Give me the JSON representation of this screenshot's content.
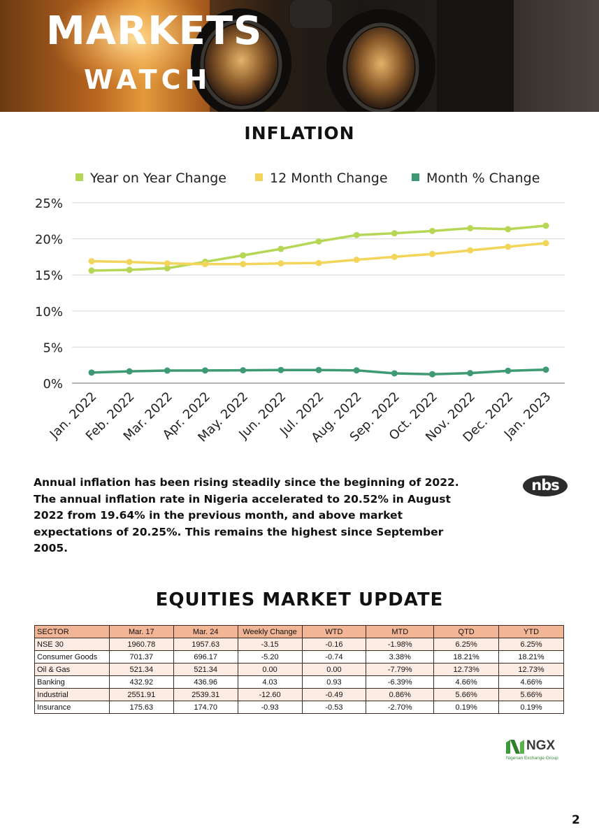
{
  "banner": {
    "title": "MARKETS",
    "subtitle": "WATCH"
  },
  "inflation": {
    "title": "INFLATION",
    "description": "Annual inflation has been rising steadily since the beginning of 2022. The annual inflation rate in Nigeria accelerated to 20.52% in August 2022 from 19.64% in the previous month, and above market expectations of 20.25%. This remains the highest since September 2005.",
    "source_logo": "nbs"
  },
  "chart_data": {
    "type": "line",
    "title": "",
    "xlabel": "",
    "ylabel": "",
    "categories": [
      "Jan. 2022",
      "Feb. 2022",
      "Mar. 2022",
      "Apr. 2022",
      "May. 2022",
      "Jun. 2022",
      "Jul. 2022",
      "Aug. 2022",
      "Sep. 2022",
      "Oct. 2022",
      "Nov. 2022",
      "Dec. 2022",
      "Jan. 2023"
    ],
    "y_ticks": [
      "0%",
      "5%",
      "10%",
      "15%",
      "20%",
      "25%"
    ],
    "ylim": [
      0,
      25
    ],
    "grid": true,
    "legend_position": "top",
    "series": [
      {
        "name": "Year on Year Change",
        "color": "#b5d755",
        "values": [
          15.6,
          15.7,
          15.92,
          16.82,
          17.71,
          18.6,
          19.64,
          20.52,
          20.77,
          21.09,
          21.47,
          21.34,
          21.82
        ]
      },
      {
        "name": "12 Month Change",
        "color": "#f2d55a",
        "values": [
          16.9,
          16.8,
          16.6,
          16.5,
          16.5,
          16.6,
          16.65,
          17.1,
          17.5,
          17.9,
          18.4,
          18.9,
          19.4
        ]
      },
      {
        "name": "Month % Change",
        "color": "#3d9a73",
        "values": [
          1.47,
          1.63,
          1.74,
          1.76,
          1.78,
          1.82,
          1.82,
          1.77,
          1.36,
          1.24,
          1.39,
          1.71,
          1.87
        ]
      }
    ]
  },
  "equities": {
    "title": "EQUITIES MARKET UPDATE",
    "columns": [
      "SECTOR",
      "Mar. 17",
      "Mar. 24",
      "Weekly Change",
      "WTD",
      "MTD",
      "QTD",
      "YTD"
    ],
    "rows": [
      [
        "NSE 30",
        "1960.78",
        "1957.63",
        "-3.15",
        "-0.16",
        "-1.98%",
        "6.25%",
        "6.25%"
      ],
      [
        "Consumer Goods",
        "701.37",
        "696.17",
        "-5.20",
        "-0.74",
        "3.38%",
        "18.21%",
        "18.21%"
      ],
      [
        "Oil & Gas",
        "521.34",
        "521.34",
        "0.00",
        "0.00",
        "-7.79%",
        "12.73%",
        "12.73%"
      ],
      [
        "Banking",
        "432.92",
        "436.96",
        "4.03",
        "0.93",
        "-6.39%",
        "4.66%",
        "4.66%"
      ],
      [
        "Industrial",
        "2551.91",
        "2539.31",
        "-12.60",
        "-0.49",
        "0.86%",
        "5.66%",
        "5.66%"
      ],
      [
        "Insurance",
        "175.63",
        "174.70",
        "-0.93",
        "-0.53",
        "-2.70%",
        "0.19%",
        "0.19%"
      ]
    ]
  },
  "footer": {
    "logo_name": "NGX",
    "logo_tagline": "Nigerian Exchange Group",
    "page_number": "2"
  }
}
